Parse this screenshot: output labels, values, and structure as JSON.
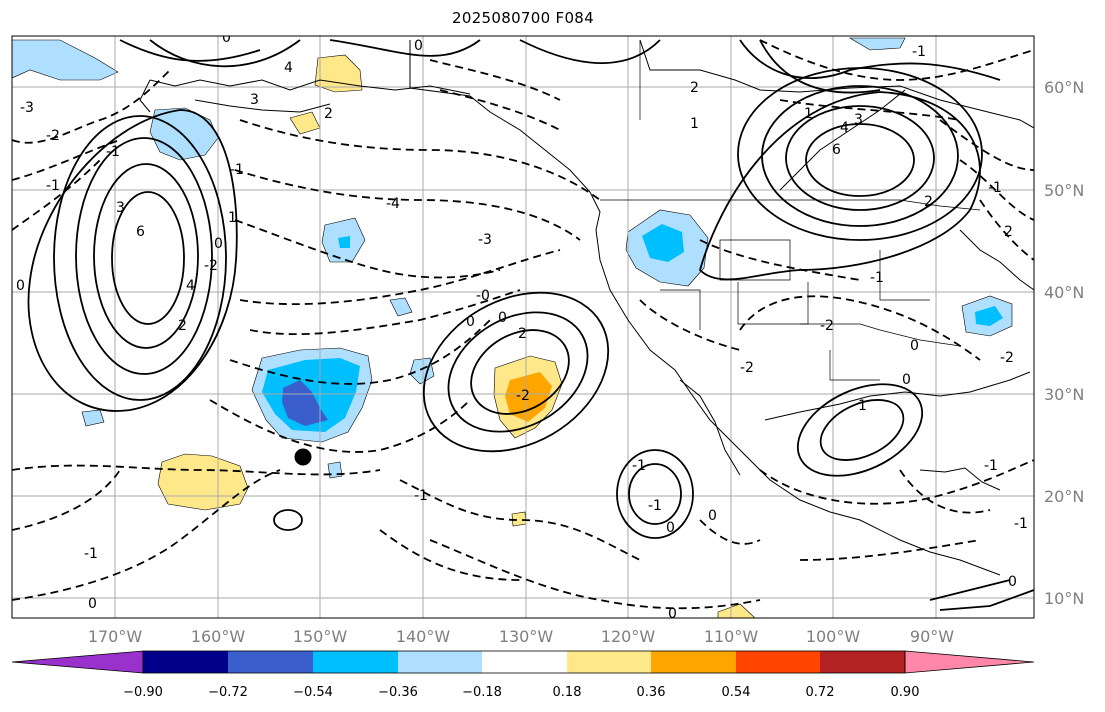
{
  "title": "2025080700 F084",
  "map": {
    "longitude_labels": [
      "170°W",
      "160°W",
      "150°W",
      "140°W",
      "130°W",
      "120°W",
      "110°W",
      "100°W",
      "90°W"
    ],
    "latitude_labels": [
      "60°N",
      "50°N",
      "40°N",
      "30°N",
      "20°N",
      "10°N"
    ],
    "contour_labels": [
      "0",
      "-3",
      "-2",
      "-1",
      "-1",
      "0",
      "3",
      "6",
      "4",
      "2",
      "1",
      "0",
      "-1",
      "-2",
      "0",
      "0",
      "-4",
      "-3",
      "4",
      "3",
      "2",
      "2",
      "0",
      "-2",
      "-0",
      "0",
      "-1",
      "0",
      "1",
      "2",
      "-1",
      "-1",
      "0",
      "4",
      "3",
      "6",
      "2",
      "1",
      "-1",
      "-2",
      "-2",
      "0",
      "1",
      "-1",
      "-2",
      "0",
      "0",
      "-1",
      "-1",
      "2",
      "-1",
      "0",
      "-1"
    ]
  },
  "colorbar": {
    "levels": [
      "−0.90",
      "−0.72",
      "−0.54",
      "−0.36",
      "−0.18",
      "0.18",
      "0.36",
      "0.54",
      "0.72",
      "0.90"
    ],
    "colors": [
      "#9932cc",
      "#00008b",
      "#3a5fcd",
      "#00bfff",
      "#afdfff",
      "#ffffff",
      "#ffe88a",
      "#ffa500",
      "#ff4500",
      "#b22222",
      "#ff88aa"
    ]
  }
}
